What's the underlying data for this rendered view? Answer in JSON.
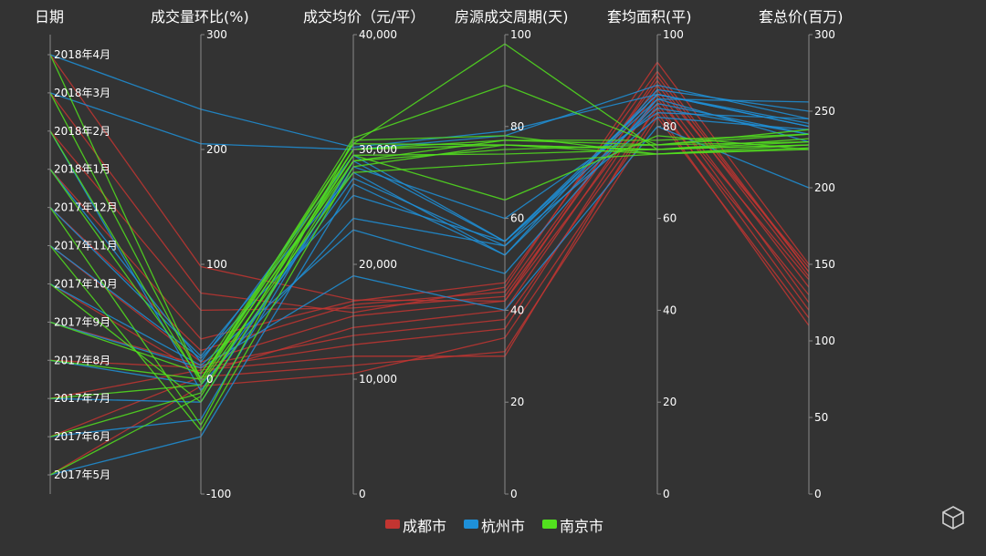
{
  "chart_data": {
    "type": "parallel",
    "axes": [
      {
        "name": "日期",
        "type": "category",
        "categories": [
          "2017年5月",
          "2017年6月",
          "2017年7月",
          "2017年8月",
          "2017年9月",
          "2017年10月",
          "2017年11月",
          "2017年12月",
          "2018年1月",
          "2018年2月",
          "2018年3月",
          "2018年4月"
        ],
        "tick_labels": [
          "2017年5月",
          "2017年6月",
          "2017年7月",
          "2017年8月",
          "2017年9月",
          "2017年10月",
          "2017年11月",
          "2017年12月",
          "2018年1月",
          "2018年2月",
          "2018年3月",
          "2018年4月"
        ]
      },
      {
        "name": "成交量环比(%)",
        "type": "value",
        "min": -100,
        "max": 300,
        "tick_labels": [
          "-100",
          "0",
          "100",
          "200",
          "300"
        ]
      },
      {
        "name": "成交均价（元/平）",
        "type": "value",
        "min": 0,
        "max": 40000,
        "tick_labels": [
          "0",
          "10,000",
          "20,000",
          "30,000",
          "40,000"
        ]
      },
      {
        "name": "房源成交周期(天)",
        "type": "value",
        "min": 0,
        "max": 100,
        "tick_labels": [
          "0",
          "20",
          "40",
          "60",
          "80",
          "100"
        ]
      },
      {
        "name": "套均面积(平)",
        "type": "value",
        "min": 0,
        "max": 100,
        "tick_labels": [
          "0",
          "20",
          "40",
          "60",
          "80",
          "100"
        ]
      },
      {
        "name": "套总价(百万)",
        "type": "value",
        "min": 0,
        "max": 300,
        "tick_labels": [
          "0",
          "50",
          "100",
          "150",
          "200",
          "250",
          "300"
        ]
      }
    ],
    "series": [
      {
        "name": "成都市",
        "color": "#c23531",
        "data": [
          [
            "2017年5月",
            -6,
            10500,
            34,
            83,
            110
          ],
          [
            "2017年6月",
            2,
            11200,
            31,
            82,
            115
          ],
          [
            "2017年7月",
            8,
            12000,
            30,
            85,
            120
          ],
          [
            "2017年8月",
            10,
            13000,
            36,
            87,
            125
          ],
          [
            "2017年9月",
            12,
            13800,
            38,
            84,
            130
          ],
          [
            "2017年10月",
            5,
            14500,
            40,
            88,
            135
          ],
          [
            "2017年11月",
            15,
            15500,
            42,
            86,
            140
          ],
          [
            "2017年12月",
            25,
            16500,
            44,
            90,
            142
          ],
          [
            "2018年1月",
            35,
            16800,
            46,
            92,
            145
          ],
          [
            "2018年2月",
            60,
            16200,
            43,
            89,
            148
          ],
          [
            "2018年3月",
            75,
            15800,
            45,
            94,
            150
          ],
          [
            "2018年4月",
            98,
            16900,
            42,
            91,
            145
          ]
        ]
      },
      {
        "name": "杭州市",
        "color": "#1e90d8",
        "data": [
          [
            "2017年5月",
            -50,
            27000,
            52,
            85,
            235
          ],
          [
            "2017年6月",
            -35,
            29000,
            55,
            87,
            240
          ],
          [
            "2017年7月",
            -20,
            28500,
            60,
            83,
            245
          ],
          [
            "2017年8月",
            -5,
            24000,
            54,
            82,
            238
          ],
          [
            "2017年9月",
            10,
            19000,
            40,
            80,
            200
          ],
          [
            "2017年10月",
            12,
            23000,
            48,
            86,
            230
          ],
          [
            "2017年11月",
            18,
            26000,
            55,
            84,
            235
          ],
          [
            "2017年12月",
            20,
            28000,
            52,
            88,
            250
          ],
          [
            "2018年1月",
            15,
            29500,
            55,
            86,
            256
          ],
          [
            "2018年2月",
            -10,
            27500,
            54,
            87,
            240
          ],
          [
            "2018年3月",
            205,
            30000,
            78,
            89,
            245
          ],
          [
            "2018年4月",
            235,
            30200,
            79,
            87,
            242
          ]
        ]
      },
      {
        "name": "南京市",
        "color": "#52e01e",
        "data": [
          [
            "2017年5月",
            -15,
            30000,
            76,
            74,
            225
          ],
          [
            "2017年6月",
            -12,
            29500,
            74,
            75,
            228
          ],
          [
            "2017年7月",
            -5,
            28000,
            72,
            74,
            226
          ],
          [
            "2017年8月",
            0,
            29000,
            75,
            76,
            230
          ],
          [
            "2017年9月",
            5,
            30500,
            76,
            75,
            232
          ],
          [
            "2017年10月",
            -20,
            29000,
            77,
            77,
            235
          ],
          [
            "2017年11月",
            -45,
            28500,
            76,
            75,
            230
          ],
          [
            "2017年12月",
            -40,
            30800,
            78,
            74,
            228
          ],
          [
            "2018年1月",
            0,
            30000,
            77,
            76,
            235
          ],
          [
            "2018年2月",
            -3,
            29500,
            64,
            78,
            225
          ],
          [
            "2018年3月",
            0,
            31000,
            89,
            76,
            238
          ],
          [
            "2018年4月",
            0,
            30500,
            98,
            75,
            228
          ]
        ]
      }
    ],
    "legend": {
      "position": "bottom-center",
      "items": [
        "成都市",
        "杭州市",
        "南京市"
      ]
    }
  }
}
